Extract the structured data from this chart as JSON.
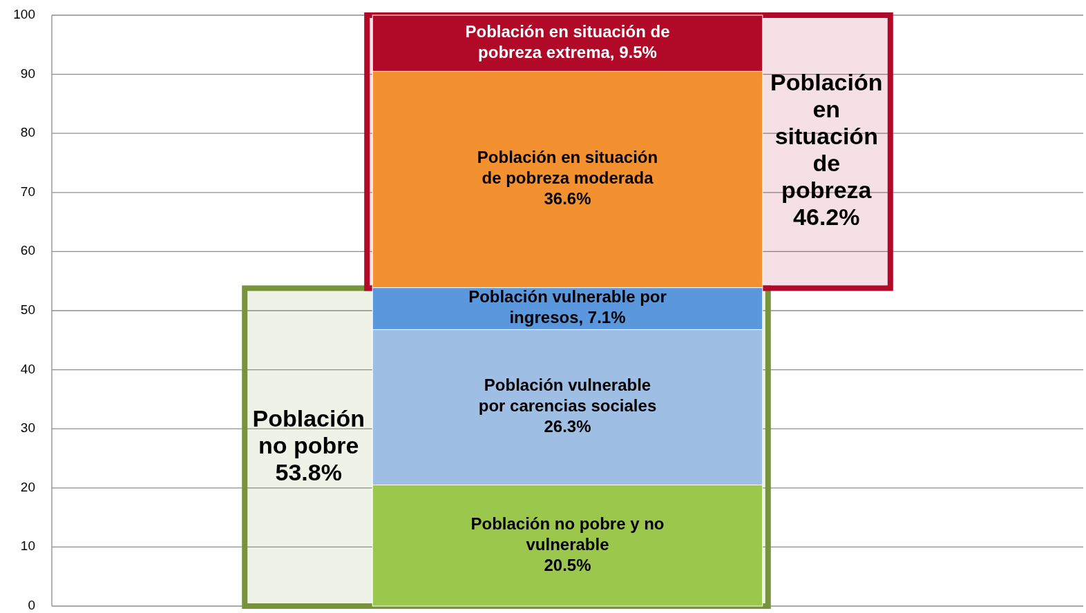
{
  "chart_data": {
    "type": "bar",
    "stacked": true,
    "categories": [
      null
    ],
    "series": [
      {
        "name": "Población no pobre y no vulnerable",
        "color": "#9bc74c",
        "values": [
          20.5
        ],
        "value_labels": [
          "20.5%"
        ]
      },
      {
        "name": "Población vulnerable por carencias sociales",
        "color": "#9ebee4",
        "values": [
          26.3
        ],
        "value_labels": [
          "26.3%"
        ]
      },
      {
        "name": "Población vulnerable por ingresos,",
        "color": "#5b97dc",
        "values": [
          7.1
        ],
        "value_labels": [
          "7.1%"
        ]
      },
      {
        "name": "Población en situación de pobreza moderada",
        "color": "#f39030",
        "values": [
          36.6
        ],
        "value_labels": [
          "36.6%"
        ]
      },
      {
        "name": "Población en situación de pobreza extrema,",
        "color": "#b00a28",
        "values": [
          9.5
        ],
        "value_labels": [
          "9.5%"
        ]
      }
    ],
    "bands": [
      {
        "axis": "y",
        "from": 0,
        "to": 53.8,
        "label": "Población no pobre 53.8%",
        "color": "#77933c"
      },
      {
        "axis": "y",
        "from": 53.8,
        "to": 100,
        "label": "Población en situación de pobreza 46.2%",
        "color": "#b00a28"
      }
    ],
    "ylim": [
      0,
      100
    ],
    "yticks": [
      0,
      10,
      20,
      30,
      40,
      50,
      60,
      70,
      80,
      90,
      100
    ],
    "grid": "y",
    "tick_labels": "y",
    "legend": false
  }
}
